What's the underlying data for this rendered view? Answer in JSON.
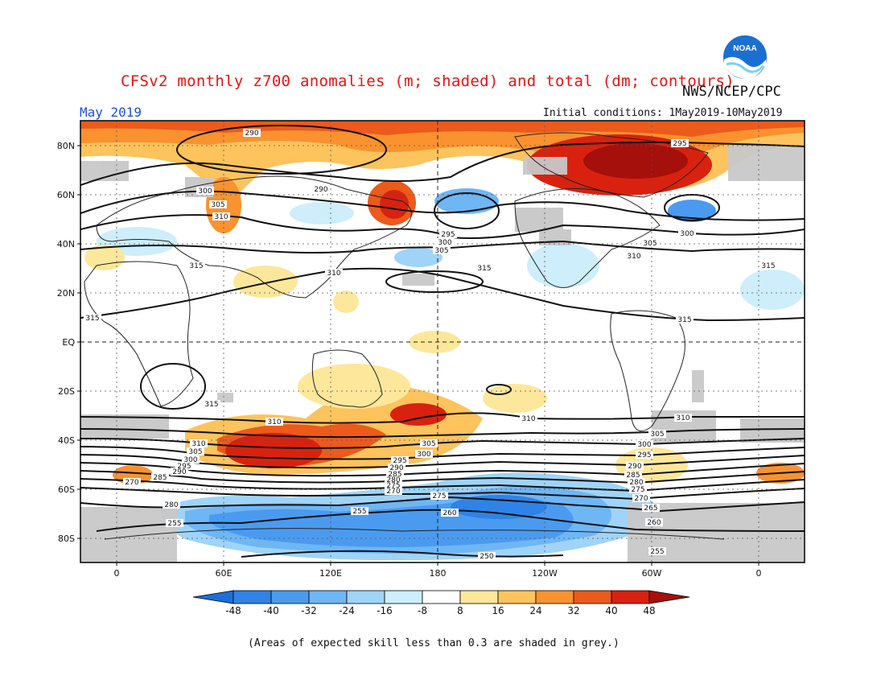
{
  "header": {
    "title": "CFSv2 monthly z700 anomalies (m; shaded) and total (dm; contours)",
    "agency": "NWS/NCEP/CPC",
    "month": "May 2019",
    "initial_conditions": "Initial conditions: 1May2019-10May2019",
    "logo_text": "NOAA"
  },
  "axes": {
    "lat_ticks": [
      "80N",
      "60N",
      "40N",
      "20N",
      "EQ",
      "20S",
      "40S",
      "60S",
      "80S"
    ],
    "lon_ticks": [
      "0",
      "60E",
      "120E",
      "180",
      "120W",
      "60W",
      "0"
    ]
  },
  "colorbar": {
    "ticks": [
      "-48",
      "-40",
      "-32",
      "-24",
      "-16",
      "-8",
      "8",
      "16",
      "24",
      "32",
      "40",
      "48"
    ],
    "colors": [
      "#1d6ed8",
      "#2f83e6",
      "#4a9bf0",
      "#6fb6f5",
      "#9fd4f8",
      "#cdeefa",
      "#ffffff",
      "#fde79a",
      "#fdc35d",
      "#f9922f",
      "#ec5a1c",
      "#d8220f",
      "#a50f0c"
    ]
  },
  "contour_labels": {
    "nh_polar": [
      "290",
      "295",
      "290"
    ],
    "nh_mid": [
      "300",
      "305",
      "310",
      "295",
      "300",
      "305",
      "300",
      "305",
      "310"
    ],
    "nh_sub": [
      "315",
      "310",
      "315",
      "315",
      "315",
      "315"
    ],
    "sh_sub": [
      "315",
      "310",
      "310",
      "310"
    ],
    "sh_mid": [
      "310",
      "305",
      "300",
      "295",
      "290",
      "285",
      "305",
      "300",
      "295",
      "290",
      "285",
      "280",
      "275",
      "270",
      "305",
      "300",
      "295",
      "290",
      "285",
      "280",
      "275",
      "270",
      "265"
    ],
    "sh_polar": [
      "270",
      "275",
      "280",
      "255",
      "260",
      "255",
      "260",
      "250",
      "255",
      "260",
      "255",
      "260"
    ]
  },
  "map": {
    "land_outline": "#222222",
    "skill_mask_color": "#c8c8c8",
    "contour_color": "#111111"
  },
  "footnote": "(Areas of expected skill less than 0.3 are shaded in grey.)"
}
